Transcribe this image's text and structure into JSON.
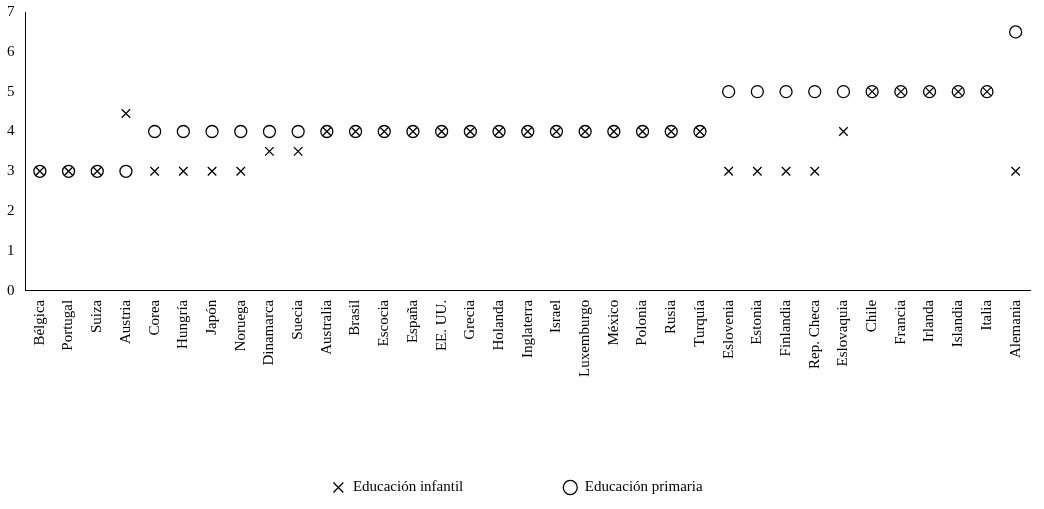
{
  "chart_data": {
    "type": "scatter",
    "categories": [
      "Bélgica",
      "Portugal",
      "Suiza",
      "Austria",
      "Corea",
      "Hungría",
      "Japón",
      "Noruega",
      "Dinamarca",
      "Suecia",
      "Australia",
      "Brasil",
      "Escocia",
      "España",
      "EE. UU.",
      "Grecia",
      "Holanda",
      "Inglaterra",
      "Israel",
      "Luxemburgo",
      "México",
      "Polonia",
      "Rusia",
      "Turquía",
      "Eslovenia",
      "Estonia",
      "Finlandia",
      "Rep. Checa",
      "Eslovaquia",
      "Chile",
      "Francia",
      "Irlanda",
      "Islandia",
      "Italia",
      "Alemania"
    ],
    "series": [
      {
        "name": "Educación infantil",
        "color": "#000000",
        "marker": "cross",
        "values": [
          3,
          3,
          3,
          4.45,
          3,
          3,
          3,
          3,
          3.5,
          3.5,
          4,
          4,
          4,
          4,
          4,
          4,
          4,
          4,
          4,
          4,
          4,
          4,
          4,
          4,
          3,
          3,
          3,
          3,
          4,
          5,
          5,
          5,
          5,
          5,
          3
        ]
      },
      {
        "name": "Educación primaria",
        "color": "#000000",
        "marker": "circle",
        "values": [
          3,
          3,
          3,
          3,
          4,
          4,
          4,
          4,
          4,
          4,
          4,
          4,
          4,
          4,
          4,
          4,
          4,
          4,
          4,
          4,
          4,
          4,
          4,
          4,
          5,
          5,
          5,
          5,
          5,
          5,
          5,
          5,
          5,
          5,
          6.5
        ]
      }
    ],
    "ylim": [
      0,
      7
    ],
    "yticks": [
      0,
      1,
      2,
      3,
      4,
      5,
      6,
      7
    ],
    "grid": false,
    "legend": "bottom"
  }
}
